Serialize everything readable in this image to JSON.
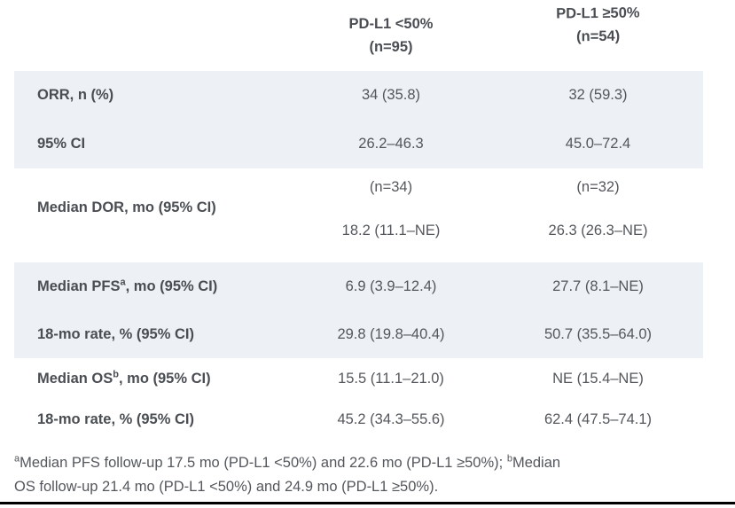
{
  "colors": {
    "row_shade": "#edf0f5",
    "label_text": "#4a4e53",
    "value_text": "#53575c",
    "bottom_rule": "#000000",
    "background": "#ffffff"
  },
  "header": {
    "col_lt50": {
      "line1": "PD-L1 <50%",
      "line2": "(n=95)"
    },
    "col_ge50": {
      "line1": "PD-L1 ≥50%",
      "line2": "(n=54)"
    }
  },
  "rows": {
    "orr": {
      "label": "ORR, n (%)",
      "v_lt50": "34 (35.8)",
      "v_ge50": "32 (59.3)"
    },
    "orr_ci": {
      "label": "95% CI",
      "v_lt50": "26.2–46.3",
      "v_ge50": "45.0–72.4"
    },
    "dor": {
      "label": "Median DOR, mo (95% CI)",
      "n_lt50": "(n=34)",
      "v_lt50": "18.2 (11.1–NE)",
      "n_ge50": "(n=32)",
      "v_ge50": "26.3 (26.3–NE)"
    },
    "pfs": {
      "label_pre": "Median PFS",
      "label_sup": "a",
      "label_post": ", mo (95% CI)",
      "v_lt50": "6.9 (3.9–12.4)",
      "v_ge50": "27.7 (8.1–NE)"
    },
    "pfs_rate": {
      "label": "18-mo rate, % (95% CI)",
      "v_lt50": "29.8 (19.8–40.4)",
      "v_ge50": "50.7 (35.5–64.0)"
    },
    "os": {
      "label_pre": "Median OS",
      "label_sup": "b",
      "label_post": ", mo (95% CI)",
      "v_lt50": "15.5 (11.1–21.0)",
      "v_ge50": "NE (15.4–NE)"
    },
    "os_rate": {
      "label": "18-mo rate, % (95% CI)",
      "v_lt50": "45.2 (34.3–55.6)",
      "v_ge50": "62.4 (47.5–74.1)"
    }
  },
  "footnote": {
    "sup_a": "a",
    "line1_a": "Median PFS follow-up 17.5 mo (PD-L1 <50%) and 22.6 mo (PD-L1 ≥50%); ",
    "sup_b": "b",
    "line1_b": "Median",
    "line2": "OS follow-up 21.4 mo (PD-L1 <50%) and 24.9 mo (PD-L1 ≥50%)."
  }
}
